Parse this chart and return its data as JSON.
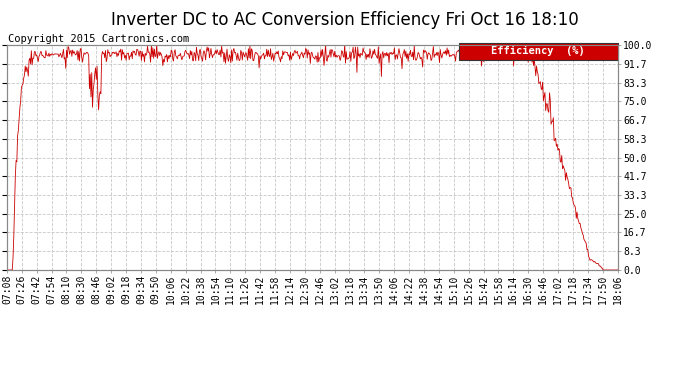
{
  "title": "Inverter DC to AC Conversion Efficiency Fri Oct 16 18:10",
  "copyright": "Copyright 2015 Cartronics.com",
  "legend_label": "Efficiency  (%)",
  "legend_bg": "#cc0000",
  "legend_fg": "#ffffff",
  "line_color": "#cc0000",
  "bg_color": "#ffffff",
  "plot_bg": "#ffffff",
  "grid_color": "#c8c8c8",
  "ylabel_right": [
    "100.0",
    "91.7",
    "83.3",
    "75.0",
    "66.7",
    "58.3",
    "50.0",
    "41.7",
    "33.3",
    "25.0",
    "16.7",
    "8.3",
    "0.0"
  ],
  "yticks_vals": [
    100.0,
    91.7,
    83.3,
    75.0,
    66.7,
    58.3,
    50.0,
    41.7,
    33.3,
    25.0,
    16.7,
    8.3,
    0.0
  ],
  "ylim": [
    0.0,
    100.0
  ],
  "xtick_labels": [
    "07:08",
    "07:26",
    "07:42",
    "07:54",
    "08:10",
    "08:30",
    "08:46",
    "09:02",
    "09:18",
    "09:34",
    "09:50",
    "10:06",
    "10:22",
    "10:38",
    "10:54",
    "11:10",
    "11:26",
    "11:42",
    "11:58",
    "12:14",
    "12:30",
    "12:46",
    "13:02",
    "13:18",
    "13:34",
    "13:50",
    "14:06",
    "14:22",
    "14:38",
    "14:54",
    "15:10",
    "15:26",
    "15:42",
    "15:58",
    "16:14",
    "16:30",
    "16:46",
    "17:02",
    "17:18",
    "17:34",
    "17:50",
    "18:06"
  ],
  "title_fontsize": 12,
  "copyright_fontsize": 7.5,
  "tick_fontsize": 7
}
